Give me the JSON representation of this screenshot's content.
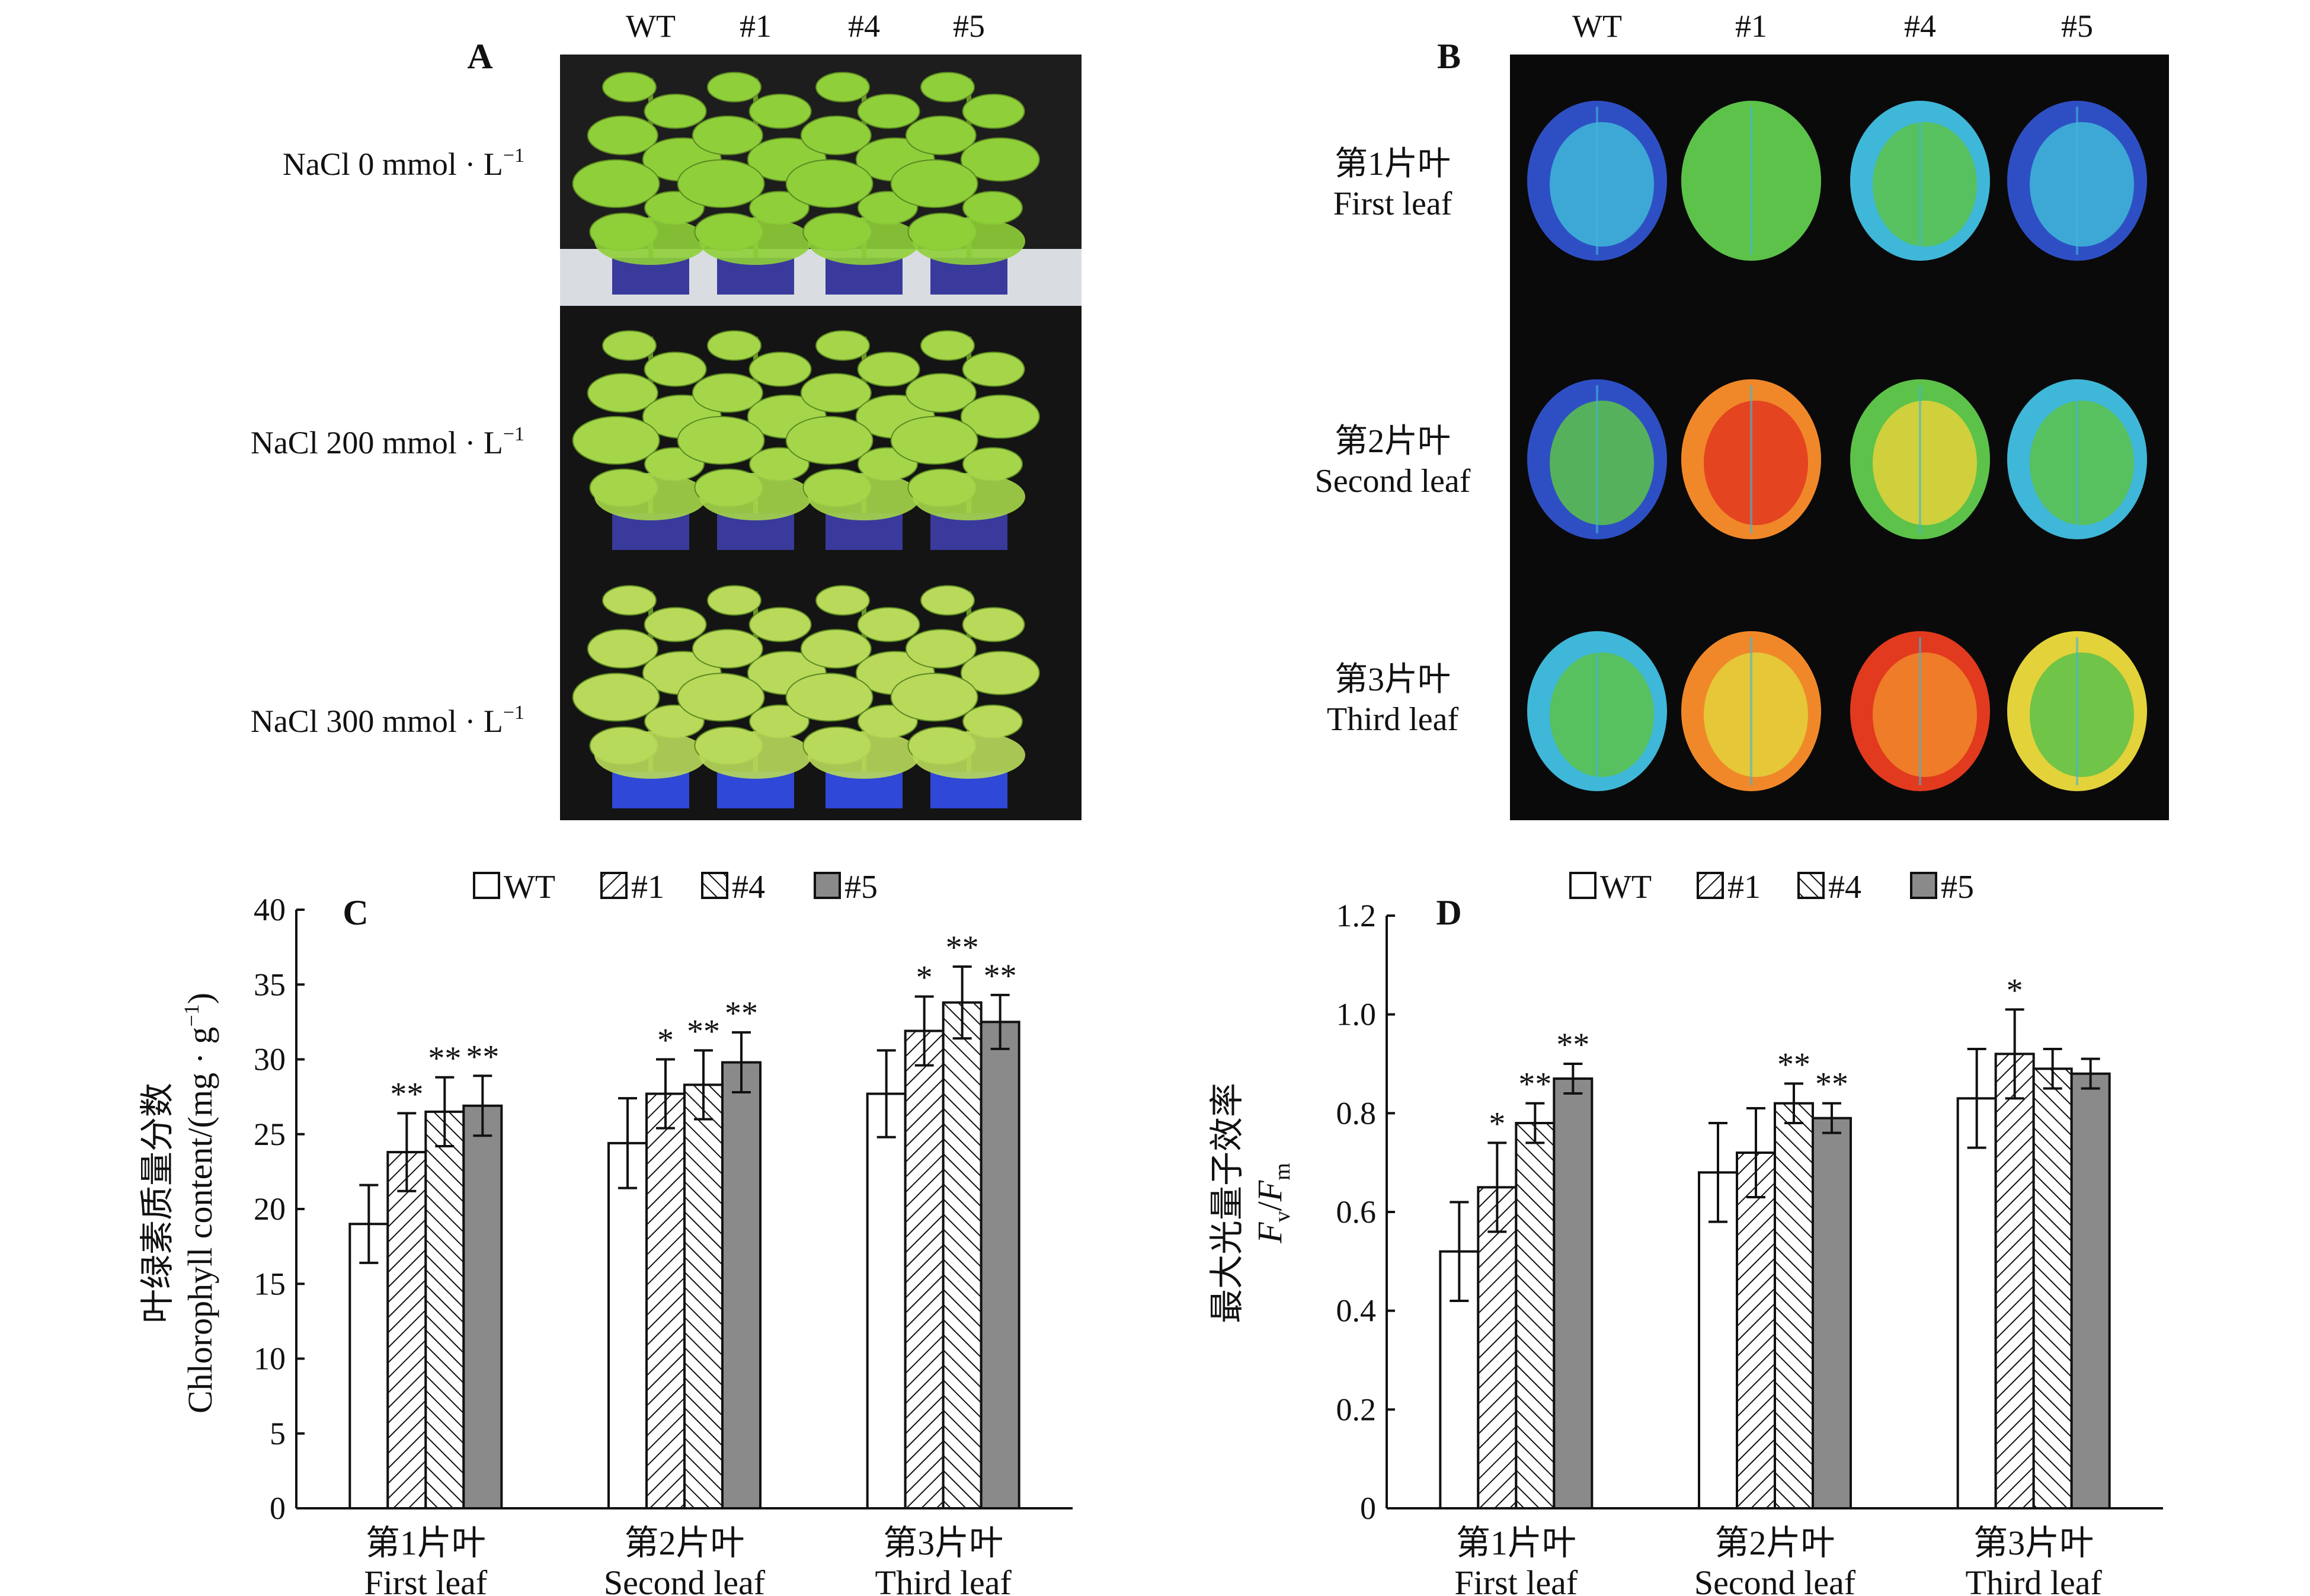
{
  "panel_letters": [
    "A",
    "B",
    "C",
    "D"
  ],
  "genotypes": [
    "WT",
    "#1",
    "#4",
    "#5"
  ],
  "panel_a": {
    "rows": [
      {
        "label": "NaCl 0 mmol · L",
        "sup": "−1"
      },
      {
        "label": "NaCl 200 mmol · L",
        "sup": "−1"
      },
      {
        "label": "NaCl 300 mmol · L",
        "sup": "−1"
      }
    ]
  },
  "panel_b": {
    "rows": [
      {
        "zh": "第1片叶",
        "en": "First leaf"
      },
      {
        "zh": "第2片叶",
        "en": "Second leaf"
      },
      {
        "zh": "第3片叶",
        "en": "Third leaf"
      }
    ]
  },
  "colors": {
    "plant_bg": "#111111",
    "fluor_bg": "#0a0a0a",
    "bar_gray": "#8a8a8a",
    "fluor_blue": "#2e4fc4",
    "fluor_cyan": "#3fb7d8",
    "fluor_green": "#5cc24a",
    "fluor_yellow": "#e3d23a",
    "fluor_orange": "#f0882a",
    "fluor_red": "#e23a1e"
  },
  "chart_data": [
    {
      "panel": "C",
      "type": "bar",
      "ylabel_zh": "叶绿素质量分数",
      "ylabel_en": "Chlorophyll content/(mg · g",
      "ylabel_sup": "−1",
      "ylim": [
        0,
        40
      ],
      "yticks": [
        "0",
        "5",
        "10",
        "15",
        "20",
        "25",
        "30",
        "35",
        "40"
      ],
      "categories": [
        {
          "zh": "第1片叶",
          "en": "First leaf"
        },
        {
          "zh": "第2片叶",
          "en": "Second leaf"
        },
        {
          "zh": "第3片叶",
          "en": "Third leaf"
        }
      ],
      "legend": [
        "WT",
        "#1",
        "#4",
        "#5"
      ],
      "series": [
        {
          "name": "WT",
          "values": [
            19.0,
            24.4,
            27.7
          ],
          "errors": [
            2.6,
            3.0,
            2.9
          ],
          "sig": [
            "",
            "",
            ""
          ]
        },
        {
          "name": "#1",
          "values": [
            23.8,
            27.7,
            31.9
          ],
          "errors": [
            2.6,
            2.3,
            2.3
          ],
          "sig": [
            "**",
            "*",
            "*"
          ]
        },
        {
          "name": "#4",
          "values": [
            26.5,
            28.3,
            33.8
          ],
          "errors": [
            2.3,
            2.3,
            2.4
          ],
          "sig": [
            "**",
            "**",
            "**"
          ]
        },
        {
          "name": "#5",
          "values": [
            26.9,
            29.8,
            32.5
          ],
          "errors": [
            2.0,
            2.0,
            1.8
          ],
          "sig": [
            "**",
            "**",
            "**"
          ]
        }
      ]
    },
    {
      "panel": "D",
      "type": "bar",
      "ylabel_zh": "最大光量子效率",
      "ylabel_en_a": "F",
      "ylabel_en_a_sub": "v",
      "ylabel_en_sep": "/",
      "ylabel_en_b": "F",
      "ylabel_en_b_sub": "m",
      "ylim": [
        0,
        1.2
      ],
      "yticks": [
        "0",
        "0.2",
        "0.4",
        "0.6",
        "0.8",
        "1.0",
        "1.2"
      ],
      "categories": [
        {
          "zh": "第1片叶",
          "en": "First leaf"
        },
        {
          "zh": "第2片叶",
          "en": "Second leaf"
        },
        {
          "zh": "第3片叶",
          "en": "Third leaf"
        }
      ],
      "legend": [
        "WT",
        "#1",
        "#4",
        "#5"
      ],
      "series": [
        {
          "name": "WT",
          "values": [
            0.52,
            0.68,
            0.83
          ],
          "errors": [
            0.1,
            0.1,
            0.1
          ],
          "sig": [
            "",
            "",
            ""
          ]
        },
        {
          "name": "#1",
          "values": [
            0.65,
            0.72,
            0.92
          ],
          "errors": [
            0.09,
            0.09,
            0.09
          ],
          "sig": [
            "*",
            "",
            "*"
          ]
        },
        {
          "name": "#4",
          "values": [
            0.78,
            0.82,
            0.89
          ],
          "errors": [
            0.04,
            0.04,
            0.04
          ],
          "sig": [
            "**",
            "**",
            ""
          ]
        },
        {
          "name": "#5",
          "values": [
            0.87,
            0.79,
            0.88
          ],
          "errors": [
            0.03,
            0.03,
            0.03
          ],
          "sig": [
            "**",
            "**",
            ""
          ]
        }
      ]
    }
  ]
}
